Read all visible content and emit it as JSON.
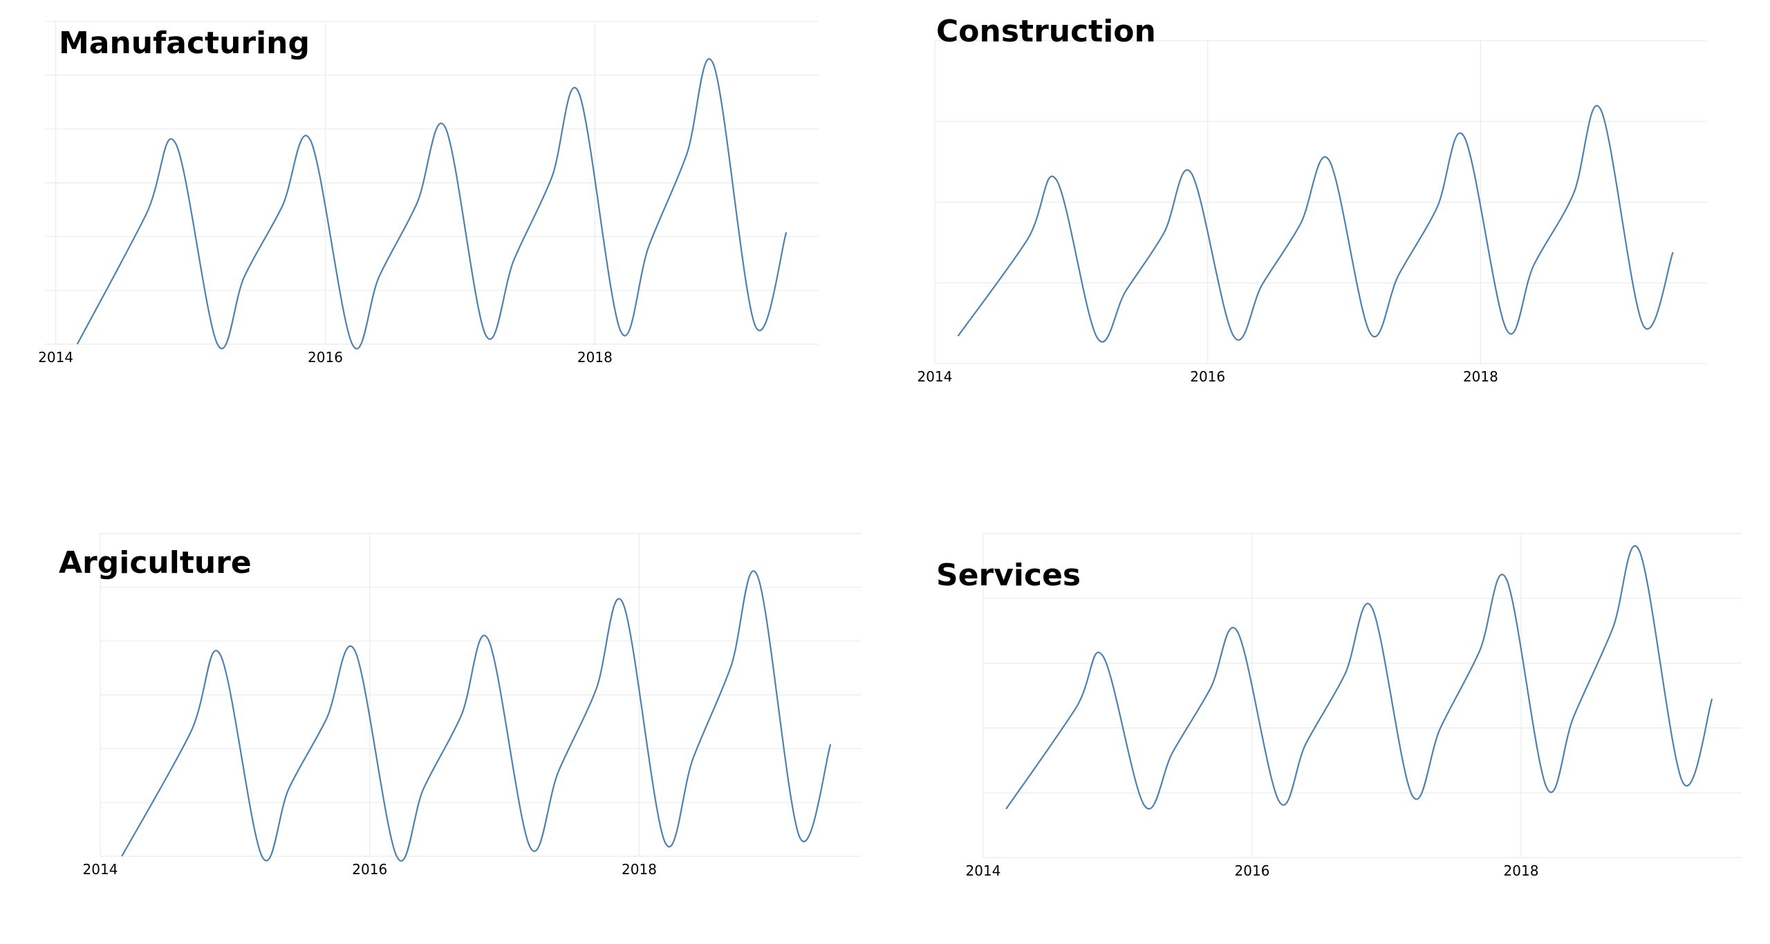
{
  "chart_data": [
    {
      "type": "line",
      "title": "Manufacturing",
      "color": "#4e81ad",
      "grid": true,
      "xlim": [
        2013.92,
        2019.66
      ],
      "xticks": [
        2014,
        2016,
        2018
      ],
      "ylim": [
        0,
        6
      ],
      "yticks": [
        0,
        1,
        2,
        3,
        4,
        5,
        6
      ],
      "x": [
        2014.16,
        2014.67,
        2014.89,
        2015.2,
        2015.4,
        2015.68,
        2015.89,
        2016.2,
        2016.4,
        2016.68,
        2016.89,
        2017.19,
        2017.4,
        2017.68,
        2017.88,
        2018.19,
        2018.4,
        2018.68,
        2018.88,
        2019.19,
        2019.42
      ],
      "values": [
        0,
        2.41,
        3.73,
        0,
        1.26,
        2.56,
        3.79,
        0,
        1.26,
        2.62,
        4.03,
        0.17,
        1.57,
        3.1,
        4.68,
        0.25,
        1.82,
        3.52,
        5.2,
        0.34,
        2.08
      ]
    },
    {
      "type": "line",
      "title": "Construction",
      "color": "#4e81ad",
      "grid": true,
      "xlim": [
        2014,
        2019.66
      ],
      "xticks": [
        2014,
        2016,
        2018
      ],
      "ylim": [
        0,
        4
      ],
      "yticks": [
        0,
        1,
        2,
        3,
        4
      ],
      "x": [
        2014.17,
        2014.68,
        2014.89,
        2015.19,
        2015.4,
        2015.68,
        2015.88,
        2016.19,
        2016.4,
        2016.68,
        2016.89,
        2017.19,
        2017.4,
        2017.68,
        2017.88,
        2018.19,
        2018.39,
        2018.68,
        2018.88,
        2019.19,
        2019.41
      ],
      "values": [
        0.34,
        1.54,
        2.28,
        0.32,
        0.9,
        1.62,
        2.36,
        0.34,
        0.98,
        1.73,
        2.52,
        0.38,
        1.1,
        1.93,
        2.81,
        0.42,
        1.22,
        2.1,
        3.15,
        0.48,
        1.38
      ]
    },
    {
      "type": "line",
      "title": "Argiculture",
      "color": "#4e81ad",
      "grid": true,
      "xlim": [
        2014,
        2019.65
      ],
      "xticks": [
        2014,
        2016,
        2018
      ],
      "ylim": [
        0,
        6
      ],
      "yticks": [
        0,
        1,
        2,
        3,
        4,
        5,
        6
      ],
      "x": [
        2014.16,
        2014.67,
        2014.89,
        2015.2,
        2015.4,
        2015.68,
        2015.89,
        2016.2,
        2016.4,
        2016.68,
        2016.88,
        2017.19,
        2017.4,
        2017.68,
        2017.88,
        2018.19,
        2018.4,
        2018.68,
        2018.88,
        2019.19,
        2019.42
      ],
      "values": [
        0,
        2.3,
        3.75,
        0,
        1.26,
        2.56,
        3.82,
        0,
        1.26,
        2.62,
        4.03,
        0.17,
        1.57,
        3.1,
        4.7,
        0.27,
        1.82,
        3.52,
        5.2,
        0.36,
        2.08
      ]
    },
    {
      "type": "line",
      "title": "Services",
      "color": "#4e81ad",
      "grid": true,
      "xlim": [
        2014,
        2019.64
      ],
      "xticks": [
        2014,
        2016,
        2018
      ],
      "ylim": [
        0,
        5
      ],
      "yticks": [
        0,
        1,
        2,
        3,
        4,
        5
      ],
      "x": [
        2014.17,
        2014.69,
        2014.89,
        2015.2,
        2015.41,
        2015.69,
        2015.89,
        2016.2,
        2016.4,
        2016.69,
        2016.89,
        2017.19,
        2017.4,
        2017.69,
        2017.89,
        2018.19,
        2018.39,
        2018.68,
        2018.88,
        2019.2,
        2019.42
      ],
      "values": [
        0.75,
        2.31,
        3.11,
        0.8,
        1.63,
        2.61,
        3.49,
        0.87,
        1.76,
        2.83,
        3.86,
        0.96,
        2.0,
        3.18,
        4.3,
        1.08,
        2.17,
        3.53,
        4.73,
        1.17,
        2.45
      ]
    }
  ]
}
